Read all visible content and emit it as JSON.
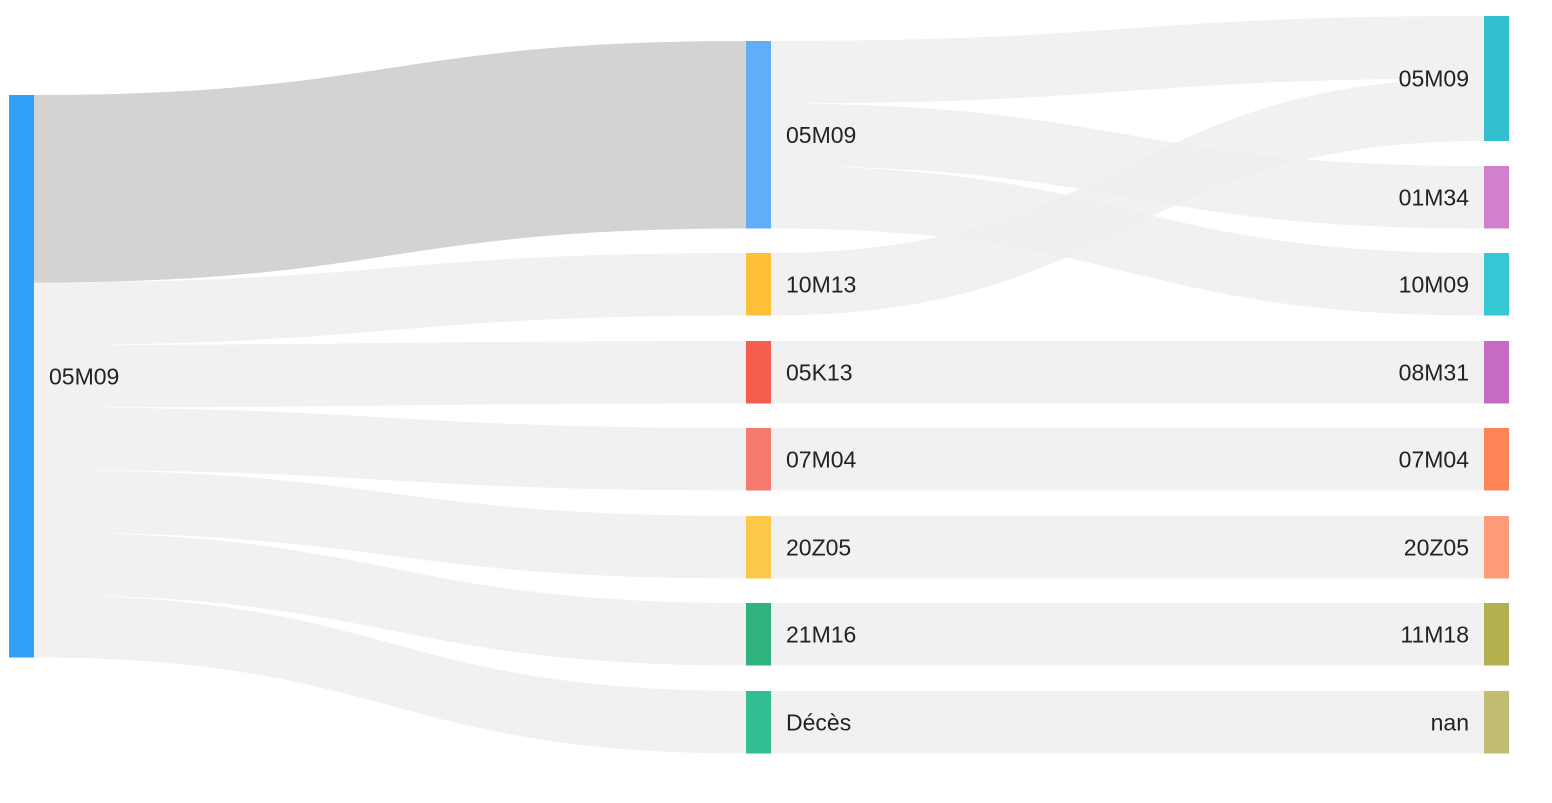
{
  "nodes": [
    {
      "id": "a",
      "label": "05M09",
      "color": "#33a0f8"
    },
    {
      "id": "b1",
      "label": "05M09",
      "color": "#62adf8"
    },
    {
      "id": "b2",
      "label": "10M13",
      "color": "#fec037"
    },
    {
      "id": "b3",
      "label": "05K13",
      "color": "#f55e4e"
    },
    {
      "id": "b4",
      "label": "07M04",
      "color": "#f47a70"
    },
    {
      "id": "b5",
      "label": "20Z05",
      "color": "#fec94b"
    },
    {
      "id": "b6",
      "label": "21M16",
      "color": "#32b27e"
    },
    {
      "id": "b7",
      "label": "Décès",
      "color": "#32be93"
    },
    {
      "id": "c1",
      "label": "05M09",
      "color": "#34bfce"
    },
    {
      "id": "c2",
      "label": "01M34",
      "color": "#d080cd"
    },
    {
      "id": "c3",
      "label": "10M09",
      "color": "#35c8d4"
    },
    {
      "id": "c4",
      "label": "08M31",
      "color": "#c76ac6"
    },
    {
      "id": "c5",
      "label": "07M04",
      "color": "#fd8557"
    },
    {
      "id": "c6",
      "label": "20Z05",
      "color": "#fe9c7a"
    },
    {
      "id": "c7",
      "label": "11M18",
      "color": "#b3b04f"
    },
    {
      "id": "c8",
      "label": "nan",
      "color": "#c1bd72"
    }
  ],
  "links": [
    {
      "source": "a",
      "target": "b1",
      "value": 3,
      "color": "#cbcbcb"
    },
    {
      "source": "a",
      "target": "b2",
      "value": 1,
      "color": "#eeeeee"
    },
    {
      "source": "a",
      "target": "b3",
      "value": 1,
      "color": "#eeeeee"
    },
    {
      "source": "a",
      "target": "b4",
      "value": 1,
      "color": "#eeeeee"
    },
    {
      "source": "a",
      "target": "b5",
      "value": 1,
      "color": "#eeeeee"
    },
    {
      "source": "a",
      "target": "b6",
      "value": 1,
      "color": "#eeeeee"
    },
    {
      "source": "a",
      "target": "b7",
      "value": 1,
      "color": "#eeeeee"
    },
    {
      "source": "b1",
      "target": "c1",
      "value": 1,
      "color": "#eeeeee"
    },
    {
      "source": "b1",
      "target": "c2",
      "value": 1,
      "color": "#eeeeee"
    },
    {
      "source": "b1",
      "target": "c3",
      "value": 1,
      "color": "#eeeeee"
    },
    {
      "source": "b2",
      "target": "c1",
      "value": 1,
      "color": "#eeeeee"
    },
    {
      "source": "b3",
      "target": "c4",
      "value": 1,
      "color": "#eeeeee"
    },
    {
      "source": "b4",
      "target": "c5",
      "value": 1,
      "color": "#eeeeee"
    },
    {
      "source": "b5",
      "target": "c6",
      "value": 1,
      "color": "#eeeeee"
    },
    {
      "source": "b6",
      "target": "c7",
      "value": 1,
      "color": "#eeeeee"
    },
    {
      "source": "b7",
      "target": "c8",
      "value": 1,
      "color": "#eeeeee"
    }
  ]
}
